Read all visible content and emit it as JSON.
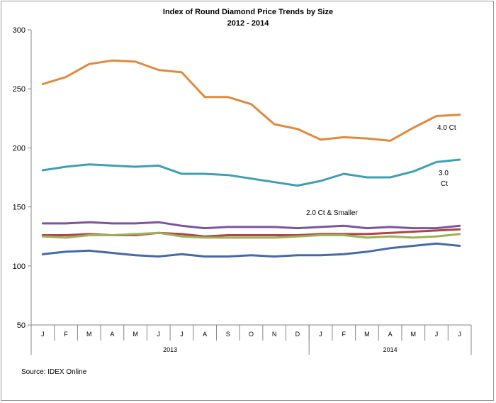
{
  "chart_data": {
    "type": "line",
    "title": "Index of Round Diamond  Price Trends by Size",
    "subtitle": "2012 - 2014",
    "source": "Source:  IDEX Online",
    "ylim": [
      50,
      300
    ],
    "yticks": [
      50,
      100,
      150,
      200,
      250,
      300
    ],
    "categories": [
      "J",
      "F",
      "M",
      "A",
      "M",
      "J",
      "J",
      "A",
      "S",
      "O",
      "N",
      "D",
      "J",
      "F",
      "M",
      "A",
      "M",
      "J",
      "J"
    ],
    "year_groups": [
      {
        "label": "2013",
        "count": 12
      },
      {
        "label": "2014",
        "count": 7
      }
    ],
    "grid": false,
    "series": [
      {
        "name": "4.0 Ct",
        "color": "#e08a3c",
        "values": [
          254,
          260,
          271,
          274,
          273,
          266,
          264,
          243,
          243,
          237,
          220,
          216,
          207,
          209,
          208,
          206,
          217,
          227,
          228
        ]
      },
      {
        "name": "3.0 Ct",
        "color": "#3f9fb4",
        "values": [
          181,
          184,
          186,
          185,
          184,
          185,
          178,
          178,
          177,
          174,
          171,
          168,
          172,
          178,
          175,
          175,
          180,
          188,
          190
        ]
      },
      {
        "name": "2.0 Ct & Smaller",
        "color": "#7a56a0",
        "values": [
          136,
          136,
          137,
          136,
          136,
          137,
          134,
          132,
          133,
          133,
          133,
          132,
          133,
          134,
          132,
          133,
          132,
          132,
          134
        ]
      },
      {
        "name": "",
        "color": "#b14444",
        "values": [
          126,
          126,
          127,
          126,
          126,
          128,
          127,
          125,
          126,
          126,
          126,
          126,
          127,
          127,
          127,
          128,
          129,
          130,
          131
        ]
      },
      {
        "name": "",
        "color": "#9bb15a",
        "values": [
          125,
          124,
          126,
          126,
          127,
          128,
          125,
          124,
          124,
          124,
          124,
          125,
          126,
          126,
          124,
          125,
          124,
          125,
          127
        ]
      },
      {
        "name": "",
        "color": "#466aa8",
        "values": [
          110,
          112,
          113,
          111,
          109,
          108,
          110,
          108,
          108,
          109,
          108,
          109,
          109,
          110,
          112,
          115,
          117,
          119,
          117
        ]
      }
    ],
    "labels": [
      {
        "text": "4.0 Ct",
        "series": 0
      },
      {
        "text": "3.0",
        "series": 1
      },
      {
        "text": "Ct",
        "series": 1
      },
      {
        "text": "2.0 Ct & Smaller",
        "series": 2
      }
    ]
  }
}
